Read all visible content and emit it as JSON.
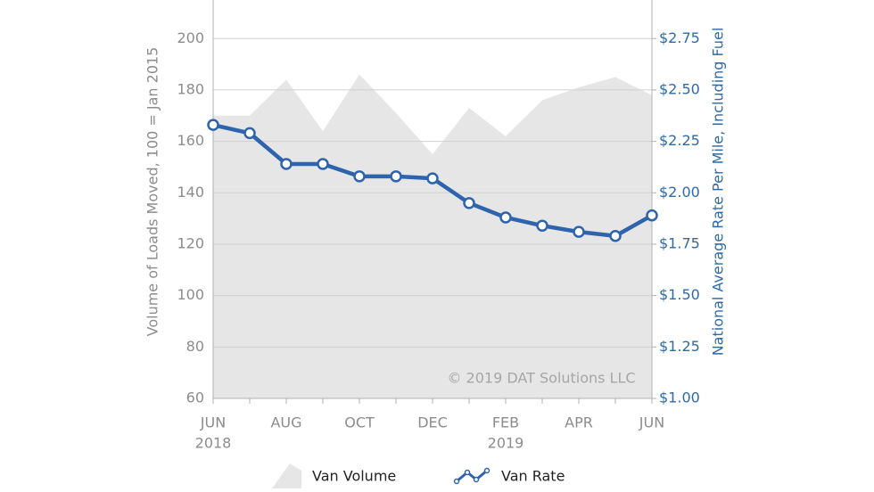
{
  "chart_data": {
    "type": "area-line",
    "categories": [
      "JUN",
      null,
      "AUG",
      null,
      "OCT",
      null,
      "DEC",
      null,
      "FEB",
      null,
      "APR",
      null,
      "JUN"
    ],
    "years": [
      "2018",
      null,
      null,
      null,
      null,
      null,
      null,
      null,
      "2019",
      null,
      null,
      null,
      null
    ],
    "series": [
      {
        "name": "Van Volume",
        "color": "#e6e6e6",
        "kind": "area",
        "values": [
          170,
          170,
          184,
          164,
          186,
          171,
          155,
          173,
          162,
          176,
          181,
          185,
          178
        ]
      },
      {
        "name": "Van Rate",
        "color": "#2e63ad",
        "kind": "line",
        "axis": "y2",
        "values": [
          2.33,
          2.29,
          2.14,
          2.14,
          2.08,
          2.08,
          2.07,
          1.95,
          1.88,
          1.84,
          1.81,
          1.79,
          1.89
        ]
      }
    ],
    "ylim": [
      60,
      215
    ],
    "yticks": [
      60,
      80,
      100,
      120,
      140,
      160,
      180,
      200
    ],
    "y2lim": [
      1.0,
      2.9375
    ],
    "y2ticks": [
      {
        "value": 1.0,
        "label": "$1.00"
      },
      {
        "value": 1.25,
        "label": "$1.25"
      },
      {
        "value": 1.5,
        "label": "$1.50"
      },
      {
        "value": 1.75,
        "label": "$1.75"
      },
      {
        "value": 2.0,
        "label": "$2.00"
      },
      {
        "value": 2.25,
        "label": "$2.25"
      },
      {
        "value": 2.5,
        "label": "$2.50"
      },
      {
        "value": 2.75,
        "label": "$2.75"
      }
    ],
    "ylabel": "Volume of Loads Moved, 100 = Jan 2015",
    "y2label": "National Average Rate Per Mile, Including Fuel",
    "watermark": "© 2019 DAT Solutions LLC",
    "grid": true
  }
}
